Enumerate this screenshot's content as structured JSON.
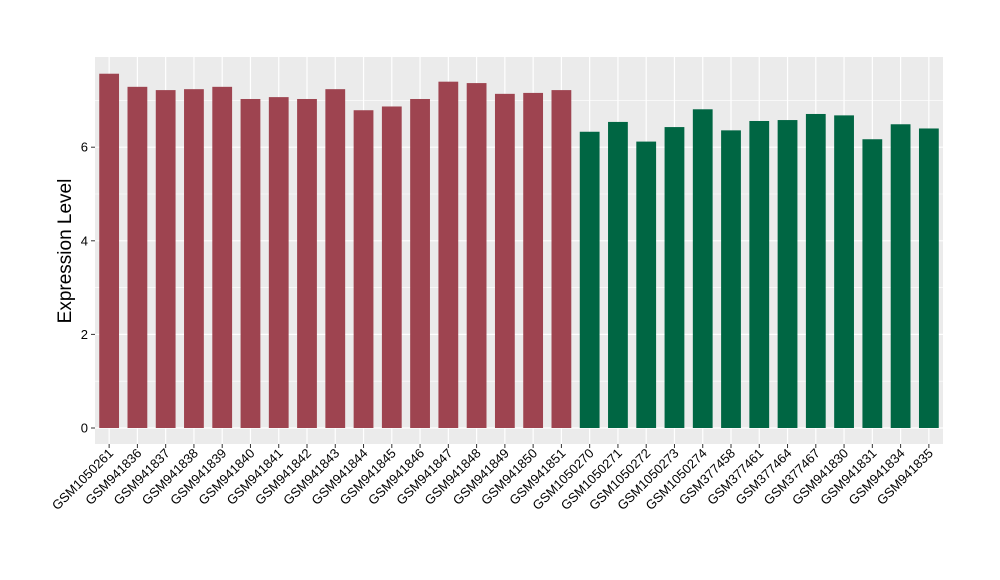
{
  "chart_data": {
    "type": "bar",
    "title": "",
    "xlabel": "",
    "ylabel": "Expression Level",
    "ylim": [
      0,
      7.86
    ],
    "yticks": [
      0,
      2,
      4,
      6
    ],
    "grid": true,
    "legend": "none",
    "colors": {
      "panel_background": "#EBEBEB",
      "gridline": "#FFFFFF",
      "group_1": "#9E4450",
      "group_2": "#006643"
    },
    "categories": [
      "GSM1050261",
      "GSM941836",
      "GSM941837",
      "GSM941838",
      "GSM941839",
      "GSM941840",
      "GSM941841",
      "GSM941842",
      "GSM941843",
      "GSM941844",
      "GSM941845",
      "GSM941846",
      "GSM941847",
      "GSM941848",
      "GSM941849",
      "GSM941850",
      "GSM941851",
      "GSM1050270",
      "GSM1050271",
      "GSM1050272",
      "GSM1050273",
      "GSM1050274",
      "GSM377458",
      "GSM377461",
      "GSM377464",
      "GSM377467",
      "GSM941830",
      "GSM941831",
      "GSM941834",
      "GSM941835"
    ],
    "values": [
      7.57,
      7.29,
      7.22,
      7.24,
      7.29,
      7.03,
      7.07,
      7.03,
      7.24,
      6.79,
      6.87,
      7.03,
      7.4,
      7.37,
      7.14,
      7.16,
      7.22,
      6.33,
      6.54,
      6.12,
      6.43,
      6.81,
      6.36,
      6.56,
      6.58,
      6.71,
      6.68,
      6.17,
      6.49,
      6.4
    ],
    "bar_groups": [
      "group_1",
      "group_1",
      "group_1",
      "group_1",
      "group_1",
      "group_1",
      "group_1",
      "group_1",
      "group_1",
      "group_1",
      "group_1",
      "group_1",
      "group_1",
      "group_1",
      "group_1",
      "group_1",
      "group_1",
      "group_2",
      "group_2",
      "group_2",
      "group_2",
      "group_2",
      "group_2",
      "group_2",
      "group_2",
      "group_2",
      "group_2",
      "group_2",
      "group_2",
      "group_2"
    ]
  }
}
